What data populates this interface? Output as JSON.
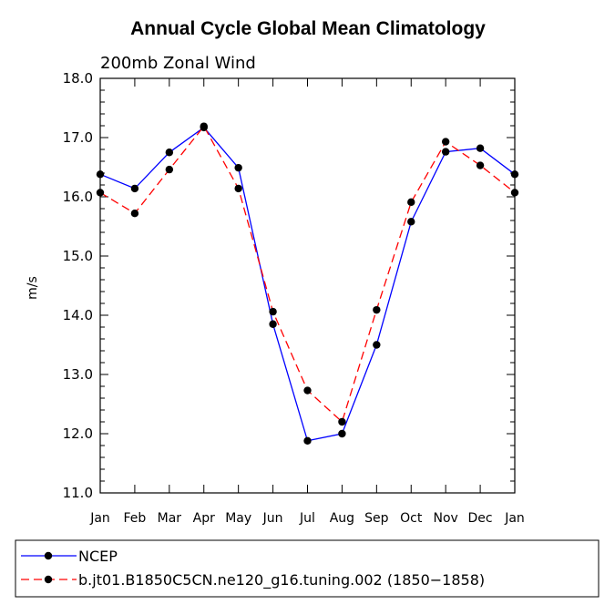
{
  "chart_data": {
    "type": "line",
    "title": "Annual Cycle Global Mean Climatology",
    "subtitle": "200mb Zonal Wind",
    "ylabel": "m/s",
    "xlabel": "",
    "categories": [
      "Jan",
      "Feb",
      "Mar",
      "Apr",
      "May",
      "Jun",
      "Jul",
      "Aug",
      "Sep",
      "Oct",
      "Nov",
      "Dec",
      "Jan"
    ],
    "ylim": [
      11.0,
      18.0
    ],
    "yticks": [
      "11.0",
      "12.0",
      "13.0",
      "14.0",
      "15.0",
      "16.0",
      "17.0",
      "18.0"
    ],
    "grid": false,
    "legend_position": "bottom",
    "series": [
      {
        "name": "NCEP",
        "color": "#0000ff",
        "dash": "solid",
        "marker": "filled-circle",
        "values": [
          16.38,
          16.14,
          16.75,
          17.17,
          16.49,
          13.85,
          11.88,
          12.0,
          13.5,
          15.58,
          16.76,
          16.82,
          16.38
        ]
      },
      {
        "name": "b.jt01.B1850C5CN.ne120_g16.tuning.002 (1850−1858)",
        "color": "#ff0000",
        "dash": "dashed",
        "marker": "filled-circle",
        "values": [
          16.07,
          15.72,
          16.46,
          17.19,
          16.14,
          14.06,
          12.73,
          12.2,
          14.09,
          15.91,
          16.93,
          16.53,
          16.07
        ]
      }
    ]
  }
}
